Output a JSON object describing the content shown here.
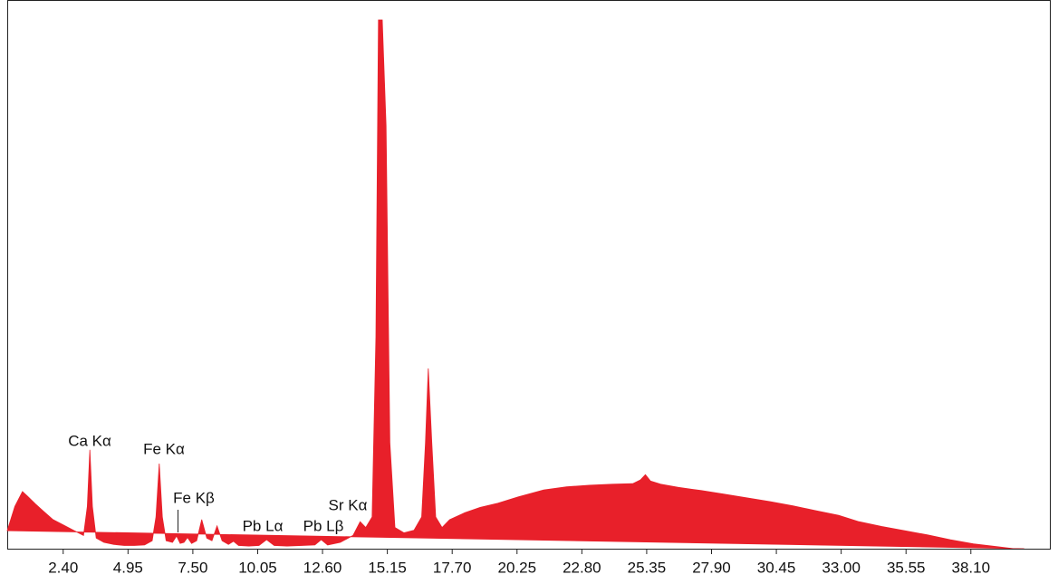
{
  "chart_data": {
    "type": "area",
    "color": "#e8202a",
    "x": [
      0.2,
      0.5,
      0.8,
      1.0,
      1.3,
      1.6,
      2.0,
      2.4,
      2.8,
      3.2,
      3.35,
      3.45,
      3.55,
      3.7,
      4.0,
      4.4,
      4.8,
      5.2,
      5.6,
      5.9,
      6.05,
      6.18,
      6.3,
      6.45,
      6.7,
      6.86,
      7.0,
      7.15,
      7.29,
      7.45,
      7.65,
      7.85,
      8.05,
      8.25,
      8.45,
      8.65,
      8.9,
      9.1,
      9.3,
      9.7,
      10.1,
      10.4,
      10.7,
      11.2,
      11.8,
      12.3,
      12.55,
      12.8,
      13.3,
      13.8,
      14.08,
      14.3,
      14.55,
      14.7,
      14.8,
      14.95,
      15.1,
      15.25,
      15.45,
      15.8,
      16.2,
      16.5,
      16.65,
      16.76,
      16.9,
      17.05,
      17.3,
      17.6,
      18.2,
      18.8,
      19.5,
      20.3,
      21.3,
      22.2,
      23.1,
      24.0,
      24.8,
      25.1,
      25.3,
      25.5,
      25.9,
      26.6,
      27.5,
      28.4,
      29.3,
      30.2,
      31.1,
      32.0,
      32.9,
      33.7,
      34.6,
      35.5,
      36.4,
      37.3,
      38.2,
      39.1,
      39.8,
      40.2
    ],
    "values": [
      3.4,
      8,
      10.8,
      9.9,
      8.5,
      7.2,
      5.5,
      4.5,
      3.5,
      2.5,
      8,
      18.7,
      8,
      2,
      1.2,
      0.8,
      0.6,
      0.6,
      0.7,
      1.5,
      6,
      16.1,
      6,
      1.5,
      1.2,
      2.4,
      1,
      1.2,
      2.1,
      1,
      1.5,
      5.5,
      2,
      1.5,
      4.3,
      1.5,
      0.8,
      1.4,
      0.6,
      0.5,
      0.6,
      1.7,
      0.6,
      0.5,
      0.6,
      0.7,
      1.7,
      0.7,
      1.2,
      2.5,
      5.1,
      4,
      6,
      40,
      100,
      100,
      80,
      20,
      4,
      3,
      3.5,
      6,
      20,
      34.1,
      20,
      6,
      4,
      5.5,
      6.8,
      7.8,
      8.6,
      9.8,
      11.1,
      11.7,
      12,
      12.2,
      12.3,
      13,
      14,
      12.8,
      12.2,
      11.6,
      11,
      10.3,
      9.6,
      8.9,
      8.1,
      7.2,
      6.3,
      5.1,
      4.2,
      3.4,
      2.6,
      1.7,
      0.9,
      0.4,
      0,
      0
    ],
    "xlim": [
      0.2,
      41.1
    ],
    "ylim": [
      0,
      100
    ],
    "xticks": [
      {
        "value": 2.4,
        "label": "2.40"
      },
      {
        "value": 4.95,
        "label": "4.95"
      },
      {
        "value": 7.5,
        "label": "7.50"
      },
      {
        "value": 10.05,
        "label": "10.05"
      },
      {
        "value": 12.6,
        "label": "12.60"
      },
      {
        "value": 15.15,
        "label": "15.15"
      },
      {
        "value": 17.7,
        "label": "17.70"
      },
      {
        "value": 20.25,
        "label": "20.25"
      },
      {
        "value": 22.8,
        "label": "22.80"
      },
      {
        "value": 25.35,
        "label": "25.35"
      },
      {
        "value": 27.9,
        "label": "27.90"
      },
      {
        "value": 30.45,
        "label": "30.45"
      },
      {
        "value": 33,
        "label": "33.00"
      },
      {
        "value": 35.55,
        "label": "35.55"
      },
      {
        "value": 38.1,
        "label": "38.10"
      }
    ],
    "annotations": [
      {
        "text": "Ca Kα"
      },
      {
        "text": "Fe Kα"
      },
      {
        "text": "Fe Kβ"
      },
      {
        "text": "Pb Lα"
      },
      {
        "text": "Pb Lβ"
      },
      {
        "text": "Sr Kα"
      }
    ]
  }
}
